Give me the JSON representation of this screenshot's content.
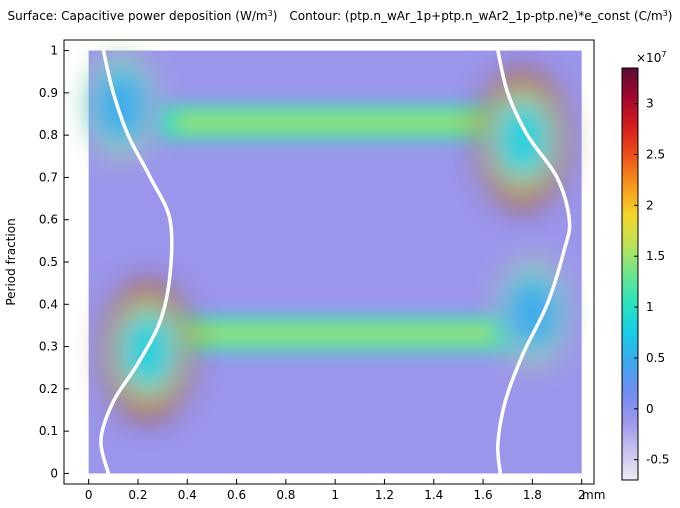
{
  "title": {
    "surface_prefix": "Surface: Capacitive power deposition (W/m",
    "surface_exp": "3",
    "surface_suffix": ")",
    "contour_prefix": "Contour: (ptp.n_wAr_1p+ptp.n_wAr2_1p-ptp.ne)*e_const (C/m",
    "contour_exp": "3",
    "contour_suffix": ")"
  },
  "colors": {
    "background": "#ffffff",
    "contour_line": "#ffffff",
    "axis": "#000000",
    "colormap": [
      "#ecebf4",
      "#c7c2ee",
      "#9b96ec",
      "#6e8ef0",
      "#3fa7ee",
      "#16cde6",
      "#29e2c0",
      "#6ee58c",
      "#bde25a",
      "#f4d528",
      "#f6991c",
      "#ee5217",
      "#d51c1f",
      "#a3072d",
      "#5c0d36"
    ]
  },
  "chart_data": {
    "type": "heatmap",
    "title": "Surface: Capacitive power deposition (W/m3)  Contour: (ptp.n_wAr_1p+ptp.n_wAr2_1p-ptp.ne)*e_const (C/m3)",
    "xlabel": "",
    "x_unit": "mm",
    "ylabel": "Period fraction",
    "xlim": [
      -0.1,
      2.05
    ],
    "ylim": [
      -0.025,
      1.025
    ],
    "x_ticks": [
      0,
      0.2,
      0.4,
      0.6,
      0.8,
      1,
      1.2,
      1.4,
      1.6,
      1.8,
      2
    ],
    "x_tick_labels": [
      "0",
      "0.2",
      "0.4",
      "0.6",
      "0.8",
      "1",
      "1.2",
      "1.4",
      "1.6",
      "1.8",
      "2"
    ],
    "y_ticks": [
      0,
      0.1,
      0.2,
      0.3,
      0.4,
      0.5,
      0.6,
      0.7,
      0.8,
      0.9,
      1
    ],
    "y_tick_labels": [
      "0",
      "0.1",
      "0.2",
      "0.3",
      "0.4",
      "0.5",
      "0.6",
      "0.7",
      "0.8",
      "0.9",
      "1"
    ],
    "grid": false,
    "colorbar": {
      "multiplier_base": "×10",
      "multiplier_exp": "7",
      "range": [
        -0.7,
        3.35
      ],
      "ticks": [
        -0.5,
        0,
        0.5,
        1,
        1.5,
        2,
        2.5,
        3
      ],
      "tick_labels": [
        "-0.5",
        "0",
        "0.5",
        "1",
        "1.5",
        "2",
        "2.5",
        "3"
      ]
    },
    "surface_features": {
      "background_value": 0.0,
      "bulk_bands": [
        {
          "y_center": 0.33,
          "y_width": 0.08,
          "peak": 1.6
        },
        {
          "y_center": 0.83,
          "y_width": 0.08,
          "peak": 1.6
        }
      ],
      "hotspots": [
        {
          "x": 0.24,
          "y": 0.29,
          "peak": 3.35
        },
        {
          "x": 1.76,
          "y": 0.79,
          "peak": 3.35
        },
        {
          "x": 0.13,
          "y": 0.87,
          "peak": 1.8
        },
        {
          "x": 1.8,
          "y": 0.38,
          "peak": 1.8
        }
      ]
    },
    "contours": [
      {
        "name": "left sheath edge",
        "points": [
          [
            0.08,
            0
          ],
          [
            0.05,
            0.08
          ],
          [
            0.1,
            0.17
          ],
          [
            0.2,
            0.26
          ],
          [
            0.29,
            0.36
          ],
          [
            0.33,
            0.47
          ],
          [
            0.33,
            0.6
          ],
          [
            0.25,
            0.7
          ],
          [
            0.16,
            0.8
          ],
          [
            0.1,
            0.9
          ],
          [
            0.06,
            1
          ]
        ]
      },
      {
        "name": "right sheath edge",
        "points": [
          [
            1.67,
            0
          ],
          [
            1.66,
            0.07
          ],
          [
            1.69,
            0.17
          ],
          [
            1.76,
            0.28
          ],
          [
            1.86,
            0.4
          ],
          [
            1.93,
            0.53
          ],
          [
            1.95,
            0.6
          ],
          [
            1.9,
            0.7
          ],
          [
            1.78,
            0.8
          ],
          [
            1.7,
            0.9
          ],
          [
            1.66,
            1
          ]
        ]
      }
    ]
  }
}
